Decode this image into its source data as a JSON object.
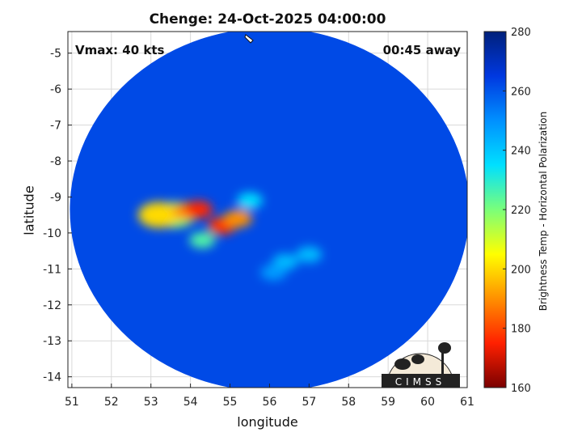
{
  "title": "Chenge: 24-Oct-2025 04:00:00",
  "xlabel": "longitude",
  "ylabel": "latitude",
  "vmax_text": "Vmax: 40 kts",
  "time_away_text": "00:45 away",
  "logo_text": "CIMSS",
  "colorbar": {
    "label": "Brightness Temp - Horizontal Polarization",
    "min": 160,
    "max": 280,
    "ticks": [
      160,
      180,
      200,
      220,
      240,
      260,
      280
    ],
    "stops": [
      "#7a0000",
      "#ff2000",
      "#ff9000",
      "#ffff00",
      "#7aff7a",
      "#00e0ff",
      "#0090ff",
      "#0038e0",
      "#00207a"
    ]
  },
  "chart_data": {
    "type": "heatmap",
    "title": "Chenge: 24-Oct-2025 04:00:00",
    "xlabel": "longitude",
    "ylabel": "latitude",
    "xlim": [
      50.9,
      61
    ],
    "ylim": [
      -14.3,
      -4.4
    ],
    "xticks": [
      51,
      52,
      53,
      54,
      55,
      56,
      57,
      58,
      59,
      60,
      61
    ],
    "yticks": [
      -5,
      -6,
      -7,
      -8,
      -9,
      -10,
      -11,
      -12,
      -13,
      -14
    ],
    "grid": true,
    "swath": {
      "center_lon": 56.0,
      "center_lat": -9.35,
      "radius_deg": 5.05
    },
    "storm_center": {
      "lon": 55.5,
      "lat": -4.6
    },
    "background_temp_k": 262,
    "features": [
      {
        "lon": 53.6,
        "lat": -9.5,
        "temp_k": 218
      },
      {
        "lon": 53.2,
        "lat": -9.5,
        "temp_k": 200
      },
      {
        "lon": 53.9,
        "lat": -9.4,
        "temp_k": 190
      },
      {
        "lon": 54.2,
        "lat": -9.35,
        "temp_k": 176
      },
      {
        "lon": 54.8,
        "lat": -9.8,
        "temp_k": 178
      },
      {
        "lon": 55.2,
        "lat": -9.6,
        "temp_k": 190
      },
      {
        "lon": 55.5,
        "lat": -9.1,
        "temp_k": 235
      },
      {
        "lon": 54.3,
        "lat": -10.2,
        "temp_k": 225
      },
      {
        "lon": 56.4,
        "lat": -10.8,
        "temp_k": 242
      },
      {
        "lon": 57.0,
        "lat": -10.6,
        "temp_k": 242
      },
      {
        "lon": 56.1,
        "lat": -11.1,
        "temp_k": 248
      }
    ]
  }
}
